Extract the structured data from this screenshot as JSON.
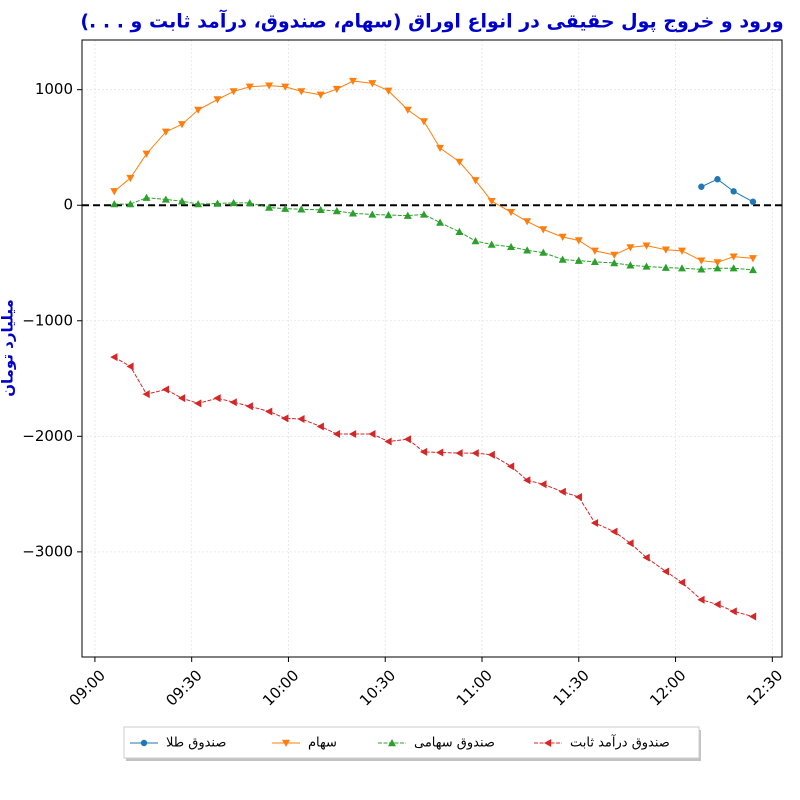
{
  "chart_data": {
    "type": "line",
    "title": "ورود و خروج پول حقیقی در انواع اوراق (سهام، صندوق، درآمد ثابت و . . .)",
    "y_label": "میلیارد تومان",
    "x": [
      "09:06",
      "09:11",
      "09:16",
      "09:22",
      "09:27",
      "09:32",
      "09:38",
      "09:43",
      "09:48",
      "09:54",
      "09:59",
      "10:04",
      "10:10",
      "10:15",
      "10:20",
      "10:26",
      "10:31",
      "10:37",
      "10:42",
      "10:47",
      "10:53",
      "10:58",
      "11:03",
      "11:09",
      "11:14",
      "11:19",
      "11:25",
      "11:30",
      "11:35",
      "11:41",
      "11:46",
      "11:51",
      "11:57",
      "12:02",
      "12:08",
      "12:13",
      "12:18",
      "12:24"
    ],
    "series": [
      {
        "name": "صندوق طلا",
        "color": "#1f77b4",
        "marker": "circle",
        "dash": false,
        "values": [
          null,
          null,
          null,
          null,
          null,
          null,
          null,
          null,
          null,
          null,
          null,
          null,
          null,
          null,
          null,
          null,
          null,
          null,
          null,
          null,
          null,
          null,
          null,
          null,
          null,
          null,
          null,
          null,
          null,
          null,
          null,
          null,
          null,
          null,
          160,
          225,
          120,
          30
        ]
      },
      {
        "name": "سهام",
        "color": "#ff7f0e",
        "marker": "triangle-down",
        "dash": false,
        "values": [
          120,
          235,
          445,
          635,
          700,
          825,
          915,
          985,
          1025,
          1035,
          1025,
          985,
          955,
          1005,
          1075,
          1055,
          990,
          825,
          725,
          495,
          375,
          215,
          35,
          -60,
          -140,
          -210,
          -275,
          -305,
          -395,
          -430,
          -365,
          -350,
          -385,
          -395,
          -480,
          -495,
          -445,
          -460
        ]
      },
      {
        "name": "صندوق سهامی",
        "color": "#2ca02c",
        "marker": "triangle-up",
        "dash": true,
        "values": [
          10,
          10,
          65,
          50,
          35,
          10,
          15,
          20,
          20,
          -20,
          -30,
          -35,
          -40,
          -50,
          -70,
          -80,
          -85,
          -90,
          -80,
          -150,
          -230,
          -310,
          -340,
          -360,
          -390,
          -410,
          -470,
          -480,
          -490,
          -500,
          -520,
          -530,
          -540,
          -545,
          -555,
          -545,
          -545,
          -560
        ]
      },
      {
        "name": "صندوق درآمد ثابت",
        "color": "#d62728",
        "marker": "triangle-left",
        "dash": true,
        "values": [
          -1315,
          -1395,
          -1635,
          -1595,
          -1670,
          -1715,
          -1670,
          -1705,
          -1740,
          -1785,
          -1845,
          -1850,
          -1915,
          -1980,
          -1980,
          -1980,
          -2045,
          -2025,
          -2135,
          -2140,
          -2145,
          -2145,
          -2160,
          -2260,
          -2380,
          -2415,
          -2480,
          -2525,
          -2750,
          -2825,
          -2925,
          -3050,
          -3170,
          -3265,
          -3415,
          -3455,
          -3515,
          -3560
        ]
      }
    ],
    "xlim": [
      "08:56",
      "12:33"
    ],
    "xticks": [
      "09:00",
      "09:30",
      "10:00",
      "10:30",
      "11:00",
      "11:30",
      "12:00",
      "12:30"
    ],
    "ylim": [
      -3910,
      1430
    ],
    "yticks": [
      {
        "value": -3000,
        "label": "−3000"
      },
      {
        "value": -2000,
        "label": "−2000"
      },
      {
        "value": -1000,
        "label": "−1000"
      },
      0,
      1000
    ],
    "hline": 0,
    "grid": true,
    "legend": "bottom"
  }
}
